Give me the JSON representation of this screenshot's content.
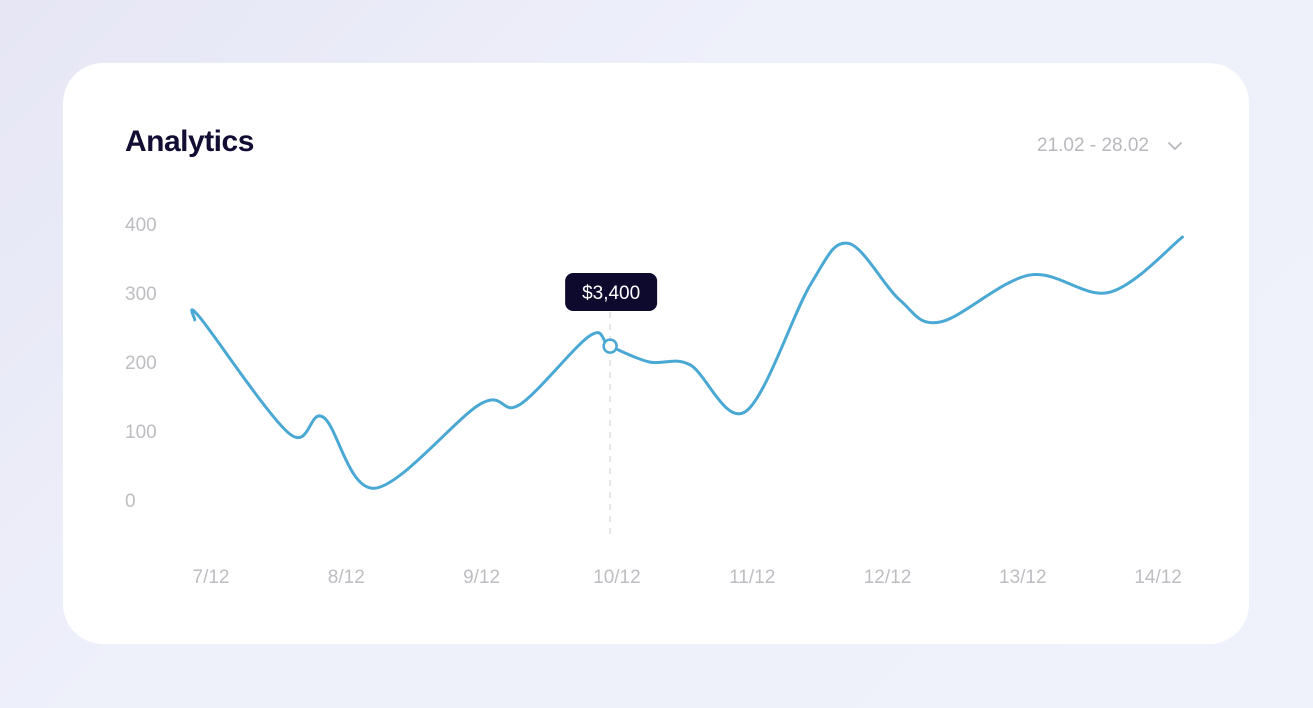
{
  "header": {
    "title": "Analytics",
    "date_range": "21.02 - 28.02"
  },
  "colors": {
    "line": "#4aa8d4",
    "tooltip_bg": "#0d0a2e",
    "title": "#120d33",
    "ticks": "#bdbdc2"
  },
  "chart_data": {
    "type": "line",
    "title": "",
    "xlabel": "",
    "ylabel": "",
    "x_tick_labels": [
      "7/12",
      "8/12",
      "9/12",
      "10/12",
      "11/12",
      "12/12",
      "13/12",
      "14/12"
    ],
    "x_tick_days": [
      7,
      8,
      9,
      10,
      11,
      12,
      13,
      14
    ],
    "y_ticks": [
      0,
      100,
      200,
      300,
      400
    ],
    "ylim": [
      0,
      400
    ],
    "grid": false,
    "smooth": true,
    "series": [
      {
        "points": [
          [
            6.88,
            261
          ],
          [
            6.92,
            264
          ],
          [
            7.58,
            96
          ],
          [
            7.83,
            120
          ],
          [
            8.21,
            17
          ],
          [
            8.99,
            139
          ],
          [
            9.28,
            138
          ],
          [
            9.8,
            238
          ],
          [
            9.95,
            223
          ],
          [
            10.24,
            200
          ],
          [
            10.54,
            196
          ],
          [
            10.95,
            128
          ],
          [
            11.43,
            312
          ],
          [
            11.71,
            372
          ],
          [
            12.09,
            290
          ],
          [
            12.39,
            258
          ],
          [
            13.05,
            326
          ],
          [
            13.64,
            301
          ],
          [
            14.18,
            381
          ]
        ]
      }
    ],
    "highlight": {
      "x": 9.95,
      "y": 223,
      "label": "$3,400"
    }
  }
}
